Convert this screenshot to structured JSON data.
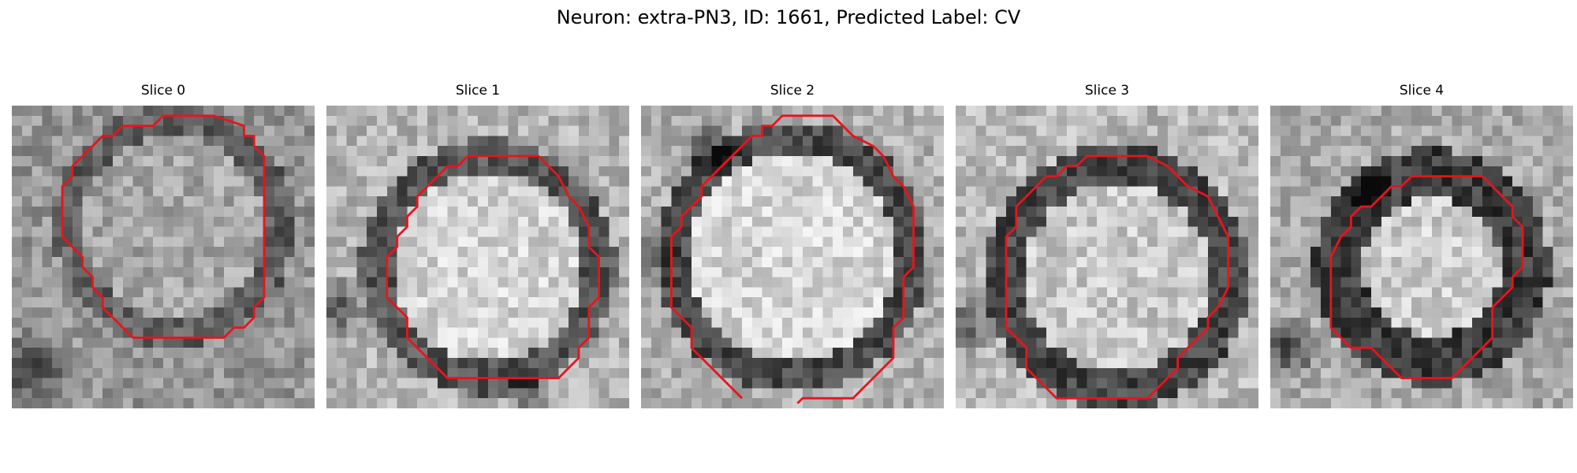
{
  "figure": {
    "title": "Neuron: extra-PN3, ID: 1661, Predicted Label: CV"
  },
  "colors": {
    "contour": "#e8141c",
    "background": "#ffffff"
  },
  "panels": [
    {
      "title": "Slice 0"
    },
    {
      "title": "Slice 1"
    },
    {
      "title": "Slice 2"
    },
    {
      "title": "Slice 3"
    },
    {
      "title": "Slice 4"
    }
  ]
}
